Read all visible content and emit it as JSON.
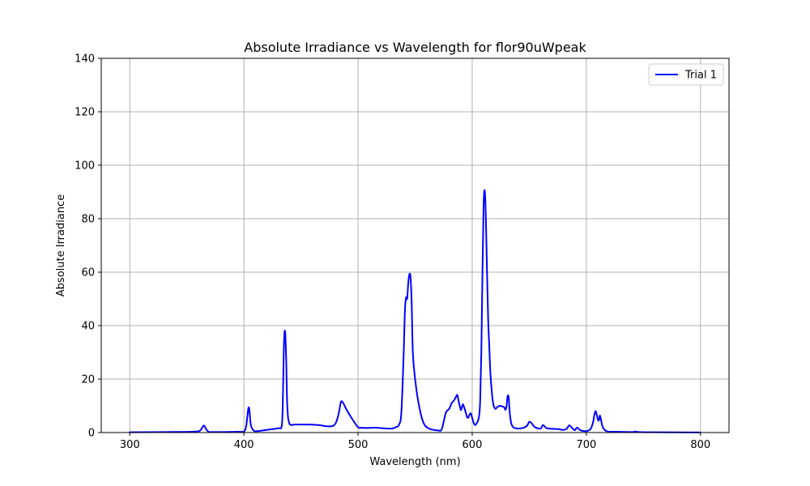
{
  "chart_data": {
    "type": "line",
    "title": "Absolute Irradiance vs Wavelength for flor90uWpeak",
    "xlabel": "Wavelength (nm)",
    "ylabel": "Absolute Irradiance",
    "xlim": [
      275,
      825
    ],
    "ylim": [
      0,
      140
    ],
    "xticks": [
      300,
      400,
      500,
      600,
      700,
      800
    ],
    "yticks": [
      0,
      20,
      40,
      60,
      80,
      100,
      120,
      140
    ],
    "grid": true,
    "legend_position": "top-right",
    "series": [
      {
        "name": "Trial 1",
        "color": "#0000ff",
        "x": [
          300,
          330,
          355,
          361,
          363,
          365,
          367,
          369,
          372,
          380,
          395,
          400,
          402,
          404,
          405,
          406,
          408,
          411,
          420,
          430,
          433,
          434,
          435,
          436,
          437,
          438,
          440,
          445,
          455,
          465,
          475,
          480,
          483,
          485,
          487,
          490,
          495,
          500,
          503,
          507,
          515,
          525,
          530,
          533,
          536,
          538,
          540,
          541,
          542,
          543,
          544,
          545,
          546,
          547,
          548,
          550,
          553,
          557,
          562,
          570,
          573,
          575,
          577,
          580,
          582,
          584,
          586,
          587,
          588,
          590,
          591,
          592,
          594,
          596,
          598,
          599,
          600,
          602,
          604,
          606,
          607,
          608,
          609,
          610,
          611,
          612,
          613,
          614,
          615,
          616,
          618,
          620,
          622,
          624,
          626,
          628,
          629,
          630,
          631,
          632,
          633,
          635,
          640,
          645,
          648,
          650,
          652,
          655,
          660,
          662,
          665,
          670,
          675,
          680,
          683,
          685,
          688,
          690,
          692,
          695,
          700,
          702,
          704,
          706,
          707,
          708,
          709,
          710,
          711,
          712,
          714,
          716,
          718,
          720,
          725,
          740,
          743,
          746,
          760,
          800
        ],
        "y": [
          0.1,
          0.2,
          0.3,
          0.6,
          1.5,
          2.6,
          1.2,
          0.3,
          0.2,
          0.2,
          0.3,
          0.4,
          2.5,
          9.3,
          7.5,
          3.0,
          1.0,
          0.5,
          1.0,
          1.6,
          2.2,
          10.0,
          32.0,
          38.0,
          28.0,
          10.0,
          3.2,
          3.0,
          3.0,
          2.8,
          2.3,
          3.2,
          7.0,
          11.5,
          11.0,
          8.5,
          5.0,
          2.0,
          1.8,
          1.7,
          1.8,
          1.5,
          1.5,
          2.0,
          3.0,
          8.0,
          30.0,
          45.0,
          50.5,
          50.0,
          56.0,
          59.2,
          58.0,
          48.0,
          30.0,
          20.0,
          11.0,
          4.0,
          1.5,
          0.8,
          1.0,
          4.0,
          7.5,
          9.0,
          11.0,
          12.0,
          13.5,
          14.0,
          12.0,
          8.5,
          9.5,
          10.5,
          8.0,
          5.5,
          7.0,
          7.0,
          5.5,
          3.0,
          3.5,
          6.0,
          12.0,
          30.0,
          60.0,
          85.0,
          90.5,
          80.0,
          60.0,
          42.0,
          32.0,
          22.0,
          12.0,
          9.0,
          9.5,
          10.0,
          9.8,
          9.5,
          8.5,
          9.5,
          13.5,
          13.0,
          7.0,
          2.5,
          1.5,
          1.8,
          2.5,
          4.0,
          3.5,
          2.0,
          1.5,
          2.8,
          1.7,
          1.4,
          1.3,
          1.0,
          1.5,
          2.7,
          1.5,
          0.9,
          1.8,
          0.8,
          0.5,
          0.8,
          1.5,
          4.0,
          6.5,
          8.0,
          7.0,
          5.0,
          4.5,
          6.3,
          2.5,
          1.0,
          0.5,
          0.3,
          0.3,
          0.2,
          0.4,
          0.2,
          0.1,
          0.05
        ]
      }
    ]
  }
}
